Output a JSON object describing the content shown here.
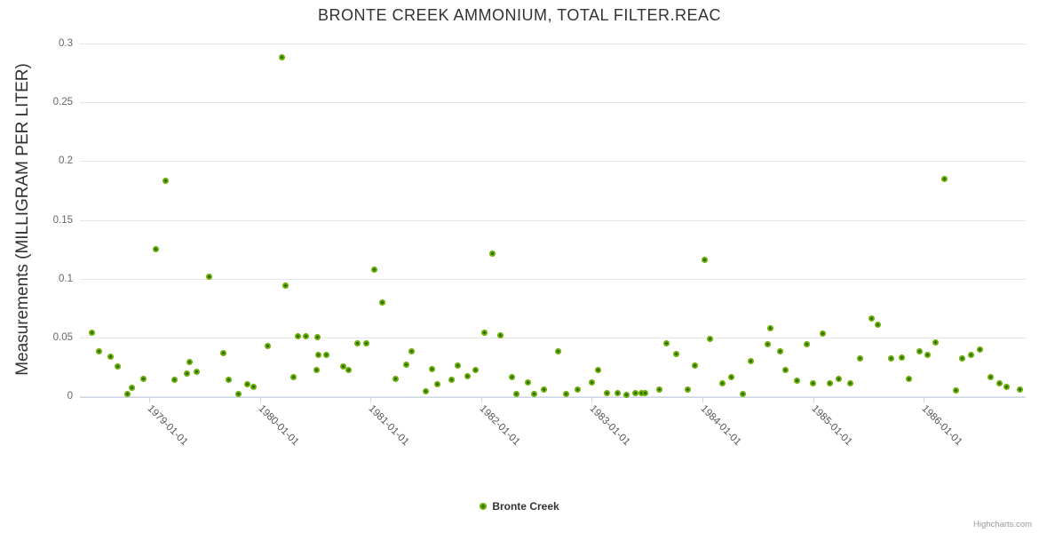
{
  "chart_title": "BRONTE CREEK AMMONIUM, TOTAL FILTER.REAC",
  "yaxis_title": "Measurements (MILLIGRAM PER LITER)",
  "legend": {
    "series_label": "Bronte Creek"
  },
  "credits_label": "Highcharts.com",
  "colors": {
    "series_fill": "#68ae02",
    "series_center": "#2e6302",
    "grid": "#e6e6e6",
    "axis_line": "#ccd6eb",
    "title_text": "#333333",
    "ytick_text": "#666666",
    "xtick_text": "#555555",
    "credits_text": "#999999",
    "background": "#ffffff"
  },
  "chart_data": {
    "type": "scatter",
    "title": "BRONTE CREEK AMMONIUM, TOTAL FILTER.REAC",
    "xlabel": "",
    "ylabel": "Measurements (MILLIGRAM PER LITER)",
    "ylim": [
      0,
      0.3
    ],
    "ytick_labels": [
      "0",
      "0.05",
      "0.1",
      "0.15",
      "0.2",
      "0.25",
      "0.3"
    ],
    "xtick_labels": [
      "1979-01-01",
      "1980-01-01",
      "1981-01-01",
      "1982-01-01",
      "1983-01-01",
      "1984-01-01",
      "1985-01-01",
      "1986-01-01"
    ],
    "grid": "horizontal-only",
    "legend_position": "bottom-center",
    "series": [
      {
        "name": "Bronte Creek",
        "color": "#68ae02",
        "points": [
          [
            "1978-06-25",
            0.054
          ],
          [
            "1978-07-17",
            0.038
          ],
          [
            "1978-08-26",
            0.034
          ],
          [
            "1978-09-19",
            0.025
          ],
          [
            "1978-10-22",
            0.002
          ],
          [
            "1978-11-05",
            0.007
          ],
          [
            "1978-12-12",
            0.015
          ],
          [
            "1979-01-24",
            0.125
          ],
          [
            "1979-02-26",
            0.183
          ],
          [
            "1979-03-25",
            0.014
          ],
          [
            "1979-05-03",
            0.019
          ],
          [
            "1979-05-13",
            0.029
          ],
          [
            "1979-06-05",
            0.021
          ],
          [
            "1979-07-17",
            0.102
          ],
          [
            "1979-09-02",
            0.037
          ],
          [
            "1979-09-19",
            0.014
          ],
          [
            "1979-10-21",
            0.002
          ],
          [
            "1979-11-20",
            0.01
          ],
          [
            "1979-12-12",
            0.008
          ],
          [
            "1980-01-27",
            0.043
          ],
          [
            "1980-03-12",
            0.288
          ],
          [
            "1980-03-25",
            0.094
          ],
          [
            "1980-04-21",
            0.016
          ],
          [
            "1980-05-06",
            0.051
          ],
          [
            "1980-06-02",
            0.051
          ],
          [
            "1980-07-05",
            0.022
          ],
          [
            "1980-07-10",
            0.05
          ],
          [
            "1980-07-12",
            0.035
          ],
          [
            "1980-08-08",
            0.035
          ],
          [
            "1980-10-01",
            0.025
          ],
          [
            "1980-10-21",
            0.022
          ],
          [
            "1980-11-20",
            0.045
          ],
          [
            "1980-12-19",
            0.045
          ],
          [
            "1981-01-14",
            0.108
          ],
          [
            "1981-02-09",
            0.08
          ],
          [
            "1981-03-22",
            0.015
          ],
          [
            "1981-04-27",
            0.027
          ],
          [
            "1981-05-16",
            0.038
          ],
          [
            "1981-07-01",
            0.004
          ],
          [
            "1981-07-21",
            0.023
          ],
          [
            "1981-08-10",
            0.01
          ],
          [
            "1981-09-25",
            0.014
          ],
          [
            "1981-10-14",
            0.026
          ],
          [
            "1981-11-16",
            0.017
          ],
          [
            "1981-12-12",
            0.022
          ],
          [
            "1982-01-11",
            0.054
          ],
          [
            "1982-02-09",
            0.121
          ],
          [
            "1982-03-05",
            0.052
          ],
          [
            "1982-04-11",
            0.016
          ],
          [
            "1982-04-27",
            0.002
          ],
          [
            "1982-06-02",
            0.012
          ],
          [
            "1982-06-25",
            0.002
          ],
          [
            "1982-07-27",
            0.006
          ],
          [
            "1982-09-12",
            0.038
          ],
          [
            "1982-10-07",
            0.002
          ],
          [
            "1982-11-16",
            0.006
          ],
          [
            "1983-01-01",
            0.012
          ],
          [
            "1983-01-21",
            0.022
          ],
          [
            "1983-02-20",
            0.003
          ],
          [
            "1983-03-25",
            0.003
          ],
          [
            "1983-04-24",
            0.001
          ],
          [
            "1983-05-23",
            0.003
          ],
          [
            "1983-06-12",
            0.003
          ],
          [
            "1983-06-25",
            0.003
          ],
          [
            "1983-08-10",
            0.006
          ],
          [
            "1983-09-05",
            0.045
          ],
          [
            "1983-10-07",
            0.036
          ],
          [
            "1983-11-13",
            0.006
          ],
          [
            "1983-12-08",
            0.026
          ],
          [
            "1984-01-08",
            0.116
          ],
          [
            "1984-01-27",
            0.049
          ],
          [
            "1984-03-05",
            0.011
          ],
          [
            "1984-04-04",
            0.016
          ],
          [
            "1984-05-13",
            0.002
          ],
          [
            "1984-06-09",
            0.03
          ],
          [
            "1984-08-03",
            0.044
          ],
          [
            "1984-08-13",
            0.058
          ],
          [
            "1984-09-15",
            0.038
          ],
          [
            "1984-10-02",
            0.022
          ],
          [
            "1984-11-10",
            0.013
          ],
          [
            "1984-12-12",
            0.044
          ],
          [
            "1985-01-01",
            0.011
          ],
          [
            "1985-02-03",
            0.053
          ],
          [
            "1985-02-26",
            0.011
          ],
          [
            "1985-03-25",
            0.015
          ],
          [
            "1985-05-03",
            0.011
          ],
          [
            "1985-06-05",
            0.032
          ],
          [
            "1985-07-11",
            0.066
          ],
          [
            "1985-08-03",
            0.061
          ],
          [
            "1985-09-15",
            0.032
          ],
          [
            "1985-10-21",
            0.033
          ],
          [
            "1985-11-13",
            0.015
          ],
          [
            "1985-12-19",
            0.038
          ],
          [
            "1986-01-14",
            0.035
          ],
          [
            "1986-02-09",
            0.046
          ],
          [
            "1986-03-09",
            0.185
          ],
          [
            "1986-04-17",
            0.005
          ],
          [
            "1986-05-06",
            0.032
          ],
          [
            "1986-06-05",
            0.035
          ],
          [
            "1986-07-04",
            0.04
          ],
          [
            "1986-08-10",
            0.016
          ],
          [
            "1986-09-08",
            0.011
          ],
          [
            "1986-10-01",
            0.008
          ],
          [
            "1986-11-13",
            0.006
          ]
        ]
      }
    ]
  }
}
